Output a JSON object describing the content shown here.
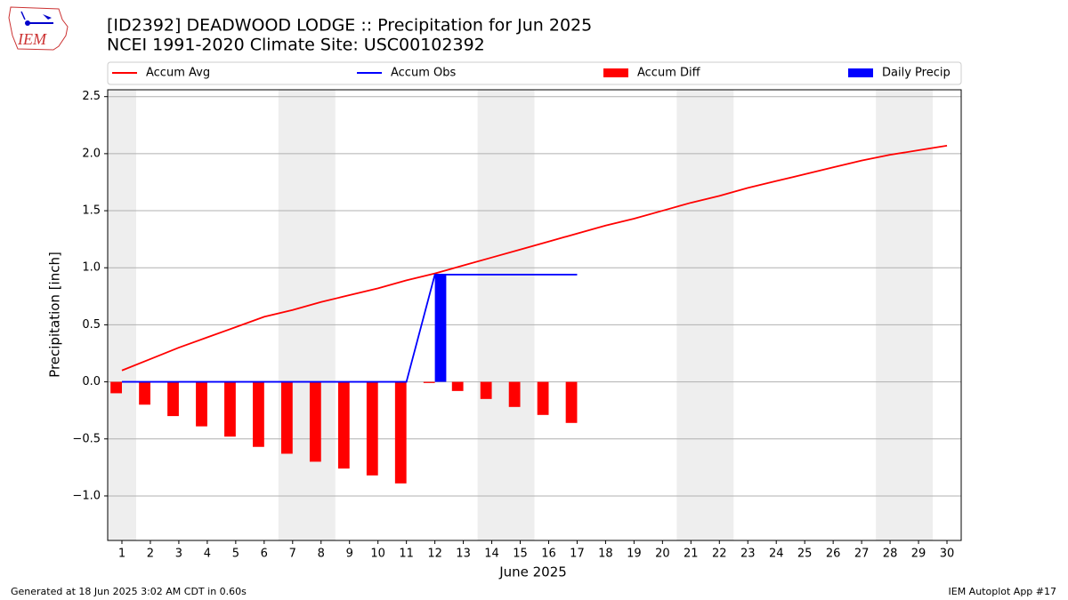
{
  "chart_data": {
    "type": "bar",
    "title": "[ID2392] DEADWOOD LODGE :: Precipitation for Jun 2025",
    "subtitle": "NCEI 1991-2020 Climate Site: USC00102392",
    "logo_text": "IEM",
    "ylabel": "Precipitation [inch]",
    "xlabel": "June 2025",
    "footer_left": "Generated at 18 Jun 2025 3:02 AM CDT in 0.60s",
    "footer_right": "IEM Autoplot App #17",
    "x": [
      1,
      2,
      3,
      4,
      5,
      6,
      7,
      8,
      9,
      10,
      11,
      12,
      13,
      14,
      15,
      16,
      17,
      18,
      19,
      20,
      21,
      22,
      23,
      24,
      25,
      26,
      27,
      28,
      29,
      30
    ],
    "xlim": [
      0.5,
      30.5
    ],
    "xticks": [
      1,
      2,
      3,
      4,
      5,
      6,
      7,
      8,
      9,
      10,
      11,
      12,
      13,
      14,
      15,
      16,
      17,
      18,
      19,
      20,
      21,
      22,
      23,
      24,
      25,
      26,
      27,
      28,
      29,
      30
    ],
    "ylim": [
      -1.39,
      2.56
    ],
    "yticks": [
      {
        "value": -1,
        "label": "−1.0"
      },
      {
        "value": -0.5,
        "label": "−0.5"
      },
      {
        "value": 0,
        "label": "0.0"
      },
      {
        "value": 0.5,
        "label": "0.5"
      },
      {
        "value": 1,
        "label": "1.0"
      },
      {
        "value": 1.5,
        "label": "1.5"
      },
      {
        "value": 2,
        "label": "2.0"
      },
      {
        "value": 2.5,
        "label": "2.5"
      }
    ],
    "grid": true,
    "legend": "top",
    "shaded_spans": [
      [
        0.5,
        1.5
      ],
      [
        6.5,
        8.5
      ],
      [
        13.5,
        15.5
      ],
      [
        20.5,
        22.5
      ],
      [
        27.5,
        29.5
      ]
    ],
    "series": [
      {
        "name": "Accum Avg",
        "type": "line",
        "color": "#ff0000",
        "values": [
          0.1,
          0.2,
          0.3,
          0.39,
          0.48,
          0.57,
          0.63,
          0.7,
          0.76,
          0.82,
          0.89,
          0.95,
          1.02,
          1.09,
          1.16,
          1.23,
          1.3,
          1.37,
          1.43,
          1.5,
          1.57,
          1.63,
          1.7,
          1.76,
          1.82,
          1.88,
          1.94,
          1.99,
          2.03,
          2.07
        ]
      },
      {
        "name": "Accum Obs",
        "type": "line",
        "color": "#0000ff",
        "values": [
          0,
          0,
          0,
          0,
          0,
          0,
          0,
          0,
          0,
          0,
          0,
          0.94,
          0.94,
          0.94,
          0.94,
          0.94,
          0.94,
          null,
          null,
          null,
          null,
          null,
          null,
          null,
          null,
          null,
          null,
          null,
          null,
          null
        ]
      },
      {
        "name": "Accum Diff",
        "type": "bar",
        "side": "left",
        "color": "#ff0000",
        "values": [
          -0.1,
          -0.2,
          -0.3,
          -0.39,
          -0.48,
          -0.57,
          -0.63,
          -0.7,
          -0.76,
          -0.82,
          -0.89,
          -0.01,
          -0.08,
          -0.15,
          -0.22,
          -0.29,
          -0.36,
          null,
          null,
          null,
          null,
          null,
          null,
          null,
          null,
          null,
          null,
          null,
          null,
          null
        ]
      },
      {
        "name": "Daily Precip",
        "type": "bar",
        "side": "right",
        "color": "#0000ff",
        "values": [
          0,
          0,
          0,
          0,
          0,
          0,
          0,
          0,
          0,
          0,
          0,
          0.94,
          0,
          0,
          0,
          0,
          0,
          null,
          null,
          null,
          null,
          null,
          null,
          null,
          null,
          null,
          null,
          null,
          null,
          null
        ]
      }
    ]
  }
}
